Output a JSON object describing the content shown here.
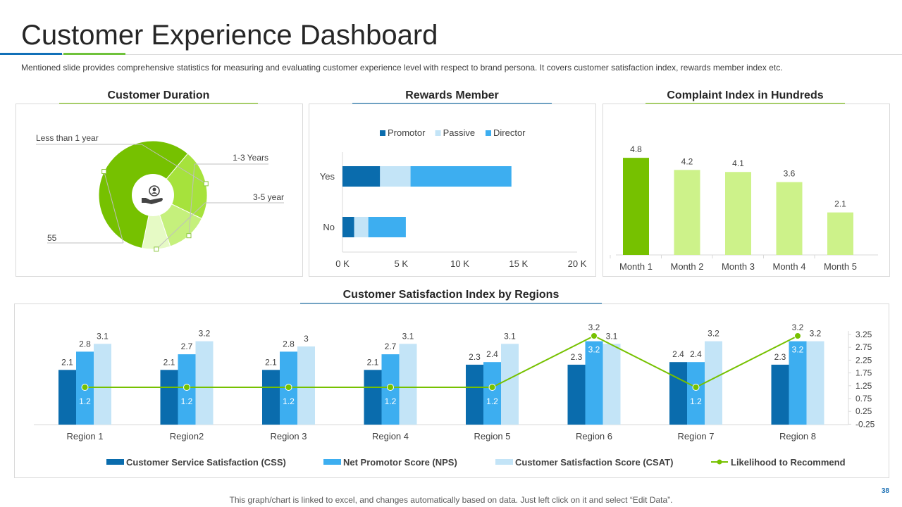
{
  "header": {
    "title": "Customer Experience Dashboard",
    "subtitle": "Mentioned slide provides  comprehensive  statistics for measuring and evaluating  customer experience  level  with respect to brand  persona.  It covers  customer satisfaction index, rewards  member index etc."
  },
  "footer": {
    "note": "This graph/chart is linked to excel, and changes automatically based on data. Just left click on it and select “Edit Data”.",
    "page_number": "38"
  },
  "colors": {
    "blue_dark": "#0a6cad",
    "blue_mid": "#3daef0",
    "blue_light": "#c3e4f7",
    "green_dark": "#76c100",
    "green_light": "#cdf28a"
  },
  "chart_data": [
    {
      "type": "pie",
      "title": "Customer Duration",
      "center_icon": "customer-hand-icon",
      "slices": [
        {
          "label": "55",
          "value": 55,
          "color": "#76c100"
        },
        {
          "label": "Less than 1 year",
          "value": 20,
          "color": "#a6e23c"
        },
        {
          "label": "1-3 Years",
          "value": 12,
          "color": "#c5f07c"
        },
        {
          "label": "3-5 year",
          "value": 8,
          "color": "#e6fac5"
        }
      ]
    },
    {
      "type": "bar",
      "orientation": "horizontal",
      "stacked": true,
      "title": "Rewards Member",
      "categories": [
        "Yes",
        "No"
      ],
      "series": [
        {
          "name": "Promotor",
          "values": [
            3.2,
            1.0
          ],
          "color": "#0a6cad"
        },
        {
          "name": "Passive",
          "values": [
            2.6,
            1.2
          ],
          "color": "#c3e4f7"
        },
        {
          "name": "Director",
          "values": [
            8.6,
            3.2
          ],
          "color": "#3daef0"
        }
      ],
      "xlim": [
        0,
        20
      ],
      "xticks": [
        "0 K",
        "5 K",
        "10 K",
        "15 K",
        "20 K"
      ]
    },
    {
      "type": "bar",
      "title": "Complaint Index in Hundreds",
      "categories": [
        "Month 1",
        "Month 2",
        "Month 3",
        "Month 4",
        "Month 5"
      ],
      "values": [
        4.8,
        4.2,
        4.1,
        3.6,
        2.1
      ],
      "labels": [
        "4.8",
        "4.2",
        "4.1",
        "3.6",
        "2.1"
      ],
      "ylim": [
        0,
        5.5
      ]
    },
    {
      "type": "bar",
      "title": "Customer Satisfaction Index by Regions",
      "categories": [
        "Region 1",
        "Region2",
        "Region 3",
        "Region 4",
        "Region 5",
        "Region 6",
        "Region 7",
        "Region 8"
      ],
      "series": [
        {
          "name": "Customer Service Satisfaction (CSS)",
          "values": [
            2.1,
            2.1,
            2.1,
            2.1,
            2.3,
            2.3,
            2.4,
            2.3
          ],
          "labels": [
            "2.1",
            "2.1",
            "2.1",
            "2.1",
            "2.3",
            "2.3",
            "2.4",
            "2.3"
          ],
          "color": "#0a6cad"
        },
        {
          "name": "Net Promotor Score (NPS)",
          "values": [
            2.8,
            2.7,
            2.8,
            2.7,
            2.4,
            3.2,
            2.4,
            3.2
          ],
          "labels": [
            "2.8",
            "2.7",
            "2.8",
            "2.7",
            "2.4",
            "3.2",
            "2.4",
            "3.2"
          ],
          "color": "#3daef0"
        },
        {
          "name": "Customer Satisfaction Score (CSAT)",
          "values": [
            3.1,
            3.2,
            3.0,
            3.1,
            3.1,
            3.1,
            3.2,
            3.2
          ],
          "labels": [
            "3.1",
            "3.2",
            "3",
            "3.1",
            "3.1",
            "3.1",
            "3.2",
            "3.2"
          ],
          "color": "#c3e4f7"
        },
        {
          "name": "Likelihood to Recommend",
          "type": "line",
          "values": [
            1.2,
            1.2,
            1.2,
            1.2,
            1.2,
            3.2,
            1.2,
            3.2
          ],
          "labels": [
            "1.2",
            "1.2",
            "1.2",
            "1.2",
            "1.2",
            "3.2",
            "1.2",
            "3.2"
          ],
          "color": "#76c100"
        }
      ],
      "ylim": [
        0,
        3.5
      ],
      "secondary_axis": {
        "ticks": [
          "3.25",
          "2.75",
          "2.25",
          "1.75",
          "1.25",
          "0.75",
          "0.25",
          "-0.25"
        ],
        "range": [
          -0.25,
          3.25
        ]
      }
    }
  ]
}
